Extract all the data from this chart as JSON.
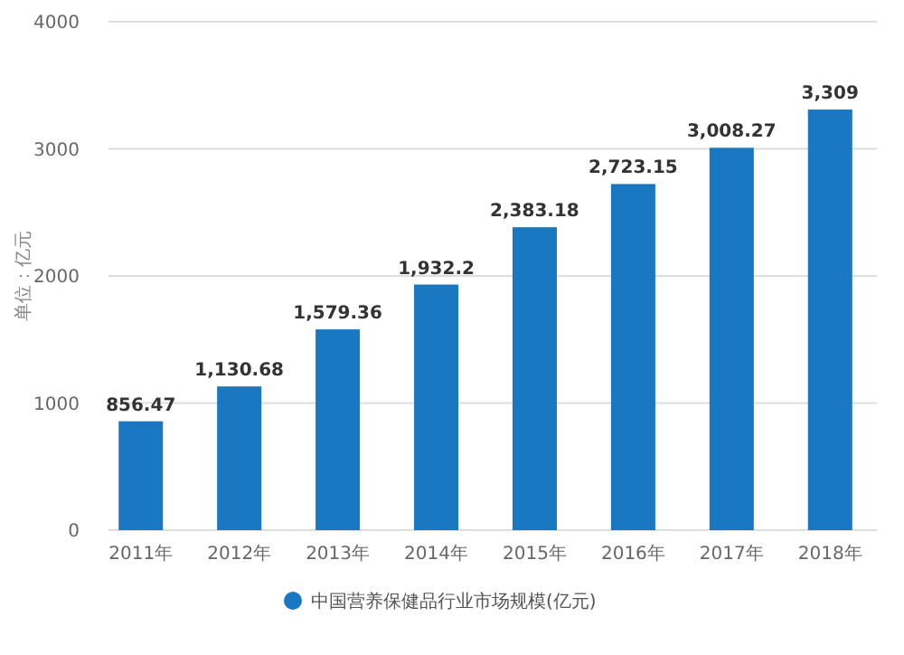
{
  "chart_data": {
    "type": "bar",
    "ylabel": "单位：亿元",
    "categories": [
      "2011年",
      "2012年",
      "2013年",
      "2014年",
      "2015年",
      "2016年",
      "2017年",
      "2018年"
    ],
    "series": [
      {
        "name": "中国营养保健品行业市场规模(亿元)",
        "color": "#1a78c2",
        "values": [
          856.47,
          1130.68,
          1579.36,
          1932.2,
          2383.18,
          2723.15,
          3008.27,
          3309
        ]
      }
    ],
    "value_labels": [
      "856.47",
      "1,130.68",
      "1,579.36",
      "1,932.2",
      "2,383.18",
      "2,723.15",
      "3,008.27",
      "3,309"
    ],
    "ylim": [
      0,
      4000
    ],
    "yticks": [
      0,
      1000,
      2000,
      3000,
      4000
    ],
    "grid": "y",
    "legend": "bottom"
  }
}
